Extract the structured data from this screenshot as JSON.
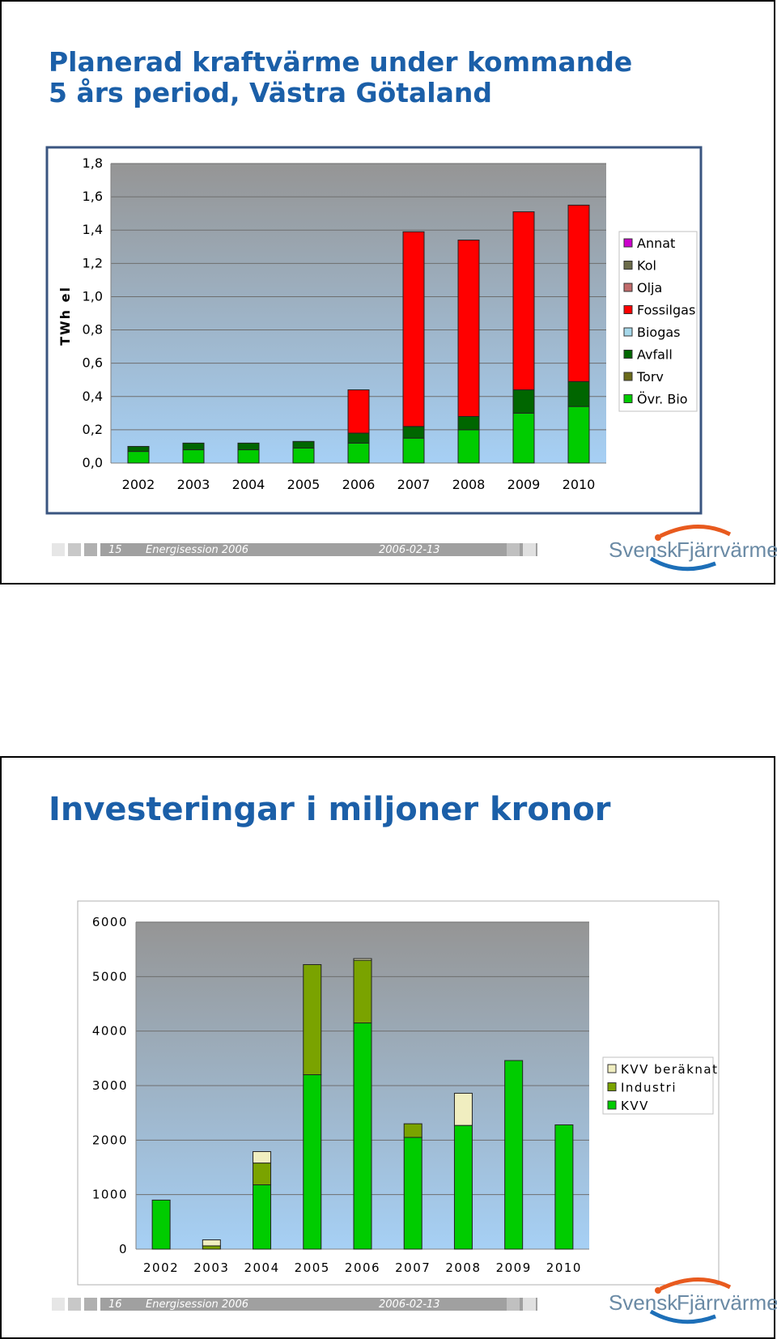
{
  "slide1": {
    "title_line1": "Planerad kraftvärme under kommande",
    "title_line2": "5 års period, Västra Götaland",
    "footer": {
      "page": "15",
      "session": "Energisession 2006",
      "date": "2006-02-13"
    }
  },
  "slide2": {
    "title": "Investeringar i miljoner kronor",
    "footer": {
      "page": "16",
      "session": "Energisession 2006",
      "date": "2006-02-13"
    }
  },
  "logo": {
    "part1": "Svensk",
    "part2": "Fjärrvärme"
  },
  "colors": {
    "title": "#1b5fa8",
    "annat": "#cc00cc",
    "kol": "#6b6b4a",
    "olja": "#c26b6b",
    "fossilgas": "#ff0000",
    "biogas": "#a6d8ea",
    "avfall": "#006600",
    "torv": "#6b6b1a",
    "ovr_bio": "#00cc00",
    "kvv_beraknat": "#f0eec0",
    "industri": "#7aa300",
    "kvv": "#00cc00"
  },
  "chart_data": [
    {
      "type": "bar",
      "stacked": true,
      "ylabel": "TWh el",
      "ylim": [
        0,
        1.8
      ],
      "yticks": [
        "0,0",
        "0,2",
        "0,4",
        "0,6",
        "0,8",
        "1,0",
        "1,2",
        "1,4",
        "1,6",
        "1,8"
      ],
      "categories": [
        "2002",
        "2003",
        "2004",
        "2005",
        "2006",
        "2007",
        "2008",
        "2009",
        "2010"
      ],
      "legend_position": "right",
      "legend": [
        "Annat",
        "Kol",
        "Olja",
        "Fossilgas",
        "Biogas",
        "Avfall",
        "Torv",
        "Övr. Bio"
      ],
      "series": [
        {
          "name": "Övr. Bio",
          "color_key": "ovr_bio",
          "values": [
            0.07,
            0.08,
            0.08,
            0.09,
            0.12,
            0.15,
            0.2,
            0.3,
            0.34
          ]
        },
        {
          "name": "Torv",
          "color_key": "torv",
          "values": [
            0,
            0,
            0,
            0,
            0,
            0,
            0,
            0,
            0
          ]
        },
        {
          "name": "Avfall",
          "color_key": "avfall",
          "values": [
            0.03,
            0.04,
            0.04,
            0.04,
            0.06,
            0.07,
            0.08,
            0.14,
            0.15
          ]
        },
        {
          "name": "Biogas",
          "color_key": "biogas",
          "values": [
            0,
            0,
            0,
            0,
            0,
            0,
            0,
            0,
            0
          ]
        },
        {
          "name": "Fossilgas",
          "color_key": "fossilgas",
          "values": [
            0,
            0,
            0,
            0,
            0.26,
            1.17,
            1.06,
            1.07,
            1.06
          ]
        },
        {
          "name": "Olja",
          "color_key": "olja",
          "values": [
            0,
            0,
            0,
            0,
            0,
            0,
            0,
            0,
            0
          ]
        },
        {
          "name": "Kol",
          "color_key": "kol",
          "values": [
            0,
            0,
            0,
            0,
            0,
            0,
            0,
            0,
            0
          ]
        },
        {
          "name": "Annat",
          "color_key": "annat",
          "values": [
            0,
            0,
            0,
            0,
            0,
            0,
            0,
            0,
            0
          ]
        }
      ]
    },
    {
      "type": "bar",
      "stacked": true,
      "ylim": [
        0,
        6000
      ],
      "yticks": [
        "0",
        "1000",
        "2000",
        "3000",
        "4000",
        "5000",
        "6000"
      ],
      "categories": [
        "2002",
        "2003",
        "2004",
        "2005",
        "2006",
        "2007",
        "2008",
        "2009",
        "2010"
      ],
      "legend_position": "right",
      "legend": [
        "KVV beräknat",
        "Industri",
        "KVV"
      ],
      "series": [
        {
          "name": "KVV",
          "color_key": "kvv",
          "values": [
            900,
            0,
            1180,
            3200,
            4150,
            2050,
            2270,
            3460,
            2280
          ]
        },
        {
          "name": "Industri",
          "color_key": "industri",
          "values": [
            0,
            60,
            400,
            2020,
            1150,
            250,
            0,
            0,
            0
          ]
        },
        {
          "name": "KVV beräknat",
          "color_key": "kvv_beraknat",
          "values": [
            0,
            110,
            210,
            0,
            30,
            0,
            590,
            0,
            0
          ]
        }
      ]
    }
  ]
}
